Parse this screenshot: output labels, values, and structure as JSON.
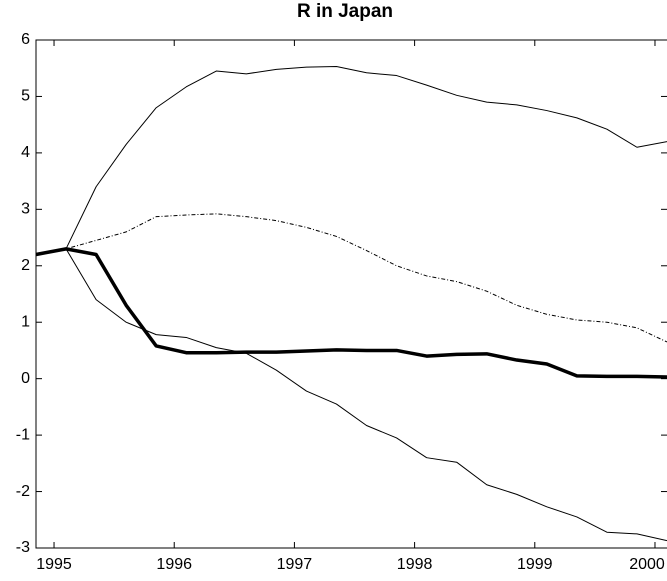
{
  "chart_data": {
    "type": "line",
    "title": "R in Japan",
    "x": [
      1994.85,
      1995.1,
      1995.35,
      1995.6,
      1995.85,
      1996.1,
      1996.35,
      1996.6,
      1996.85,
      1997.1,
      1997.35,
      1997.6,
      1997.85,
      1998.1,
      1998.35,
      1998.6,
      1998.85,
      1999.1,
      1999.35,
      1999.6,
      1999.85,
      2000.1
    ],
    "series": [
      {
        "color": "#000000",
        "width": 1,
        "dash": "solid",
        "values": [
          2.2,
          2.3,
          3.4,
          4.15,
          4.8,
          5.17,
          5.45,
          5.4,
          5.48,
          5.52,
          5.53,
          5.42,
          5.37,
          5.2,
          5.02,
          4.9,
          4.85,
          4.75,
          4.62,
          4.42,
          4.1,
          4.2
        ]
      },
      {
        "color": "#000000",
        "width": 1,
        "dash": "dashdot",
        "values": [
          2.2,
          2.3,
          2.45,
          2.6,
          2.87,
          2.9,
          2.92,
          2.87,
          2.8,
          2.68,
          2.52,
          2.27,
          2.0,
          1.82,
          1.72,
          1.55,
          1.3,
          1.14,
          1.04,
          1.0,
          0.9,
          0.65
        ]
      },
      {
        "color": "#000000",
        "width": 3.5,
        "dash": "solid",
        "values": [
          2.2,
          2.3,
          2.2,
          1.3,
          0.58,
          0.46,
          0.46,
          0.47,
          0.47,
          0.49,
          0.51,
          0.5,
          0.5,
          0.4,
          0.43,
          0.44,
          0.33,
          0.26,
          0.05,
          0.04,
          0.04,
          0.03
        ]
      },
      {
        "color": "#000000",
        "width": 1,
        "dash": "solid",
        "values": [
          2.2,
          2.3,
          1.4,
          1.0,
          0.78,
          0.73,
          0.55,
          0.45,
          0.15,
          -0.22,
          -0.45,
          -0.83,
          -1.05,
          -1.4,
          -1.48,
          -1.88,
          -2.05,
          -2.27,
          -2.45,
          -2.72,
          -2.75,
          -2.87
        ]
      }
    ],
    "xlim": [
      1994.85,
      2000.1
    ],
    "xticks": [
      1995,
      1996,
      1997,
      1998,
      1999,
      2000
    ],
    "ylim": [
      -3,
      6
    ],
    "yticks": [
      -3,
      -2,
      -1,
      0,
      1,
      2,
      3,
      4,
      5,
      6
    ]
  }
}
